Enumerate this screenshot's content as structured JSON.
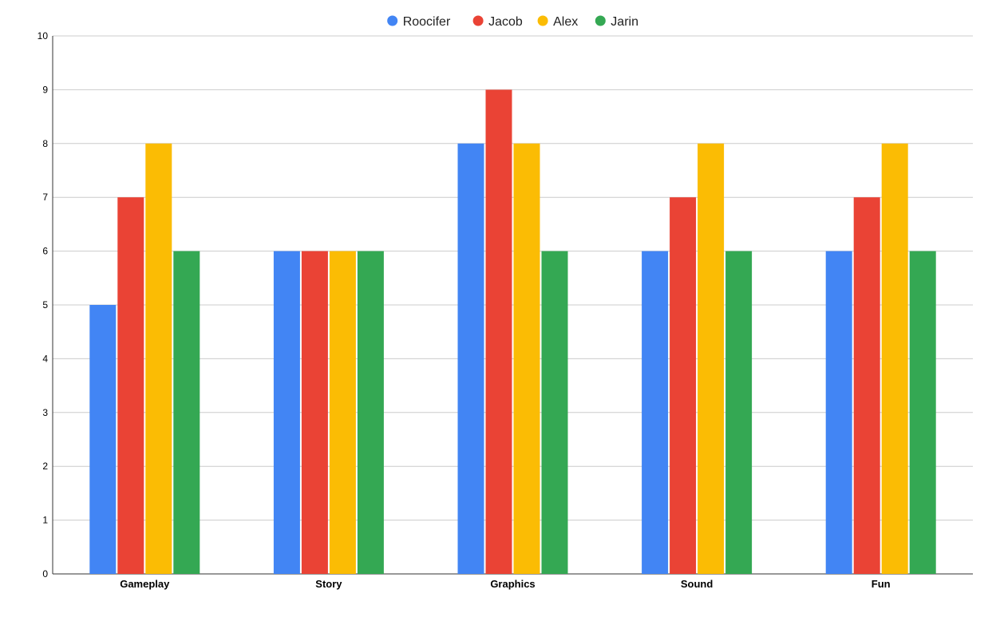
{
  "chart_data": {
    "type": "bar",
    "title": "",
    "xlabel": "",
    "ylabel": "",
    "categories": [
      "Gameplay",
      "Story",
      "Graphics",
      "Sound",
      "Fun"
    ],
    "series": [
      {
        "name": "Roocifer",
        "color": "#4285F4",
        "values": [
          5,
          6,
          8,
          6,
          6
        ]
      },
      {
        "name": "Jacob",
        "color": "#EA4335",
        "values": [
          7,
          6,
          9,
          7,
          7
        ]
      },
      {
        "name": "Alex",
        "color": "#FBBC04",
        "values": [
          8,
          6,
          8,
          8,
          8
        ]
      },
      {
        "name": "Jarin",
        "color": "#34A853",
        "values": [
          6,
          6,
          6,
          6,
          6
        ]
      }
    ],
    "ylim": [
      0,
      10
    ],
    "yticks": [
      0,
      1,
      2,
      3,
      4,
      5,
      6,
      7,
      8,
      9,
      10
    ],
    "grid": true,
    "legend_position": "top-center"
  }
}
